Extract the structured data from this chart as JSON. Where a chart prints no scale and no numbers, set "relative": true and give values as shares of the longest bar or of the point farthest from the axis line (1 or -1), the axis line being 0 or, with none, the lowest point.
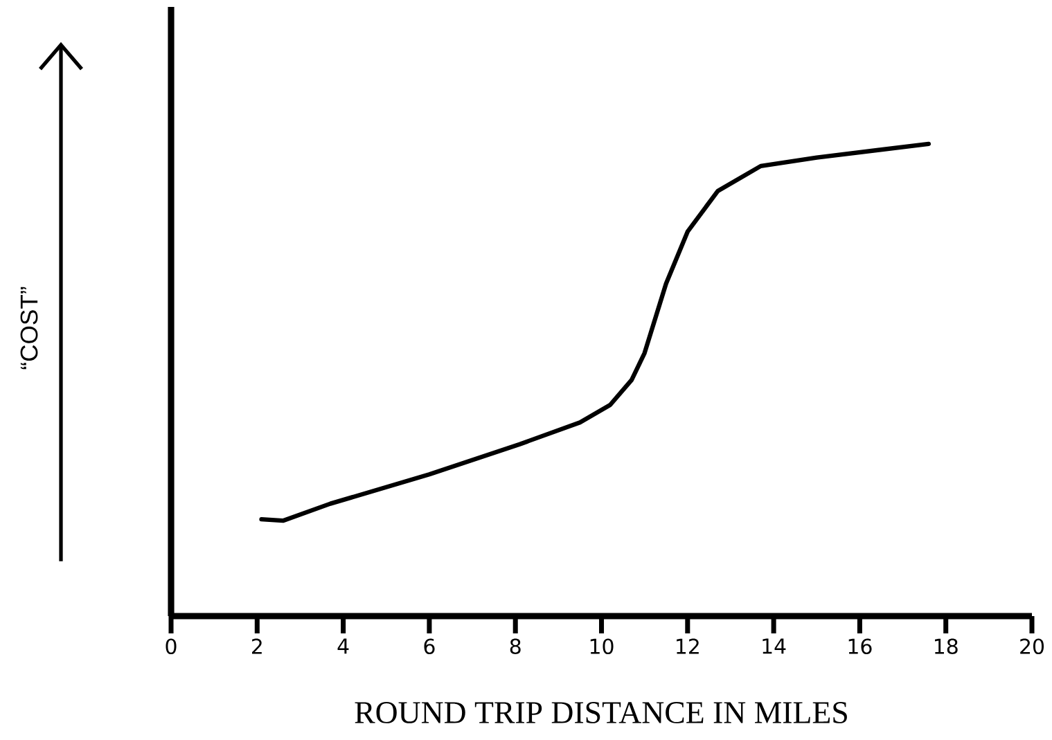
{
  "chart_data": {
    "type": "line",
    "xlabel": "ROUND TRIP DISTANCE IN MILES",
    "annotations": [
      "“COST”"
    ],
    "relative": true,
    "color": "#000000",
    "marker": "none",
    "line_style": "solid",
    "x": [
      2.1,
      2.6,
      3.7,
      6.0,
      8.1,
      9.5,
      10.2,
      10.7,
      11.0,
      11.5,
      12.0,
      12.7,
      13.7,
      15.0,
      17.6
    ],
    "values": [
      0.205,
      0.202,
      0.238,
      0.3,
      0.364,
      0.41,
      0.447,
      0.5,
      0.557,
      0.704,
      0.814,
      0.9,
      0.953,
      0.971,
      1.0
    ],
    "xlim": [
      0,
      20
    ],
    "xticks": [
      0,
      2,
      4,
      6,
      8,
      10,
      12,
      14,
      16,
      18,
      20
    ]
  }
}
